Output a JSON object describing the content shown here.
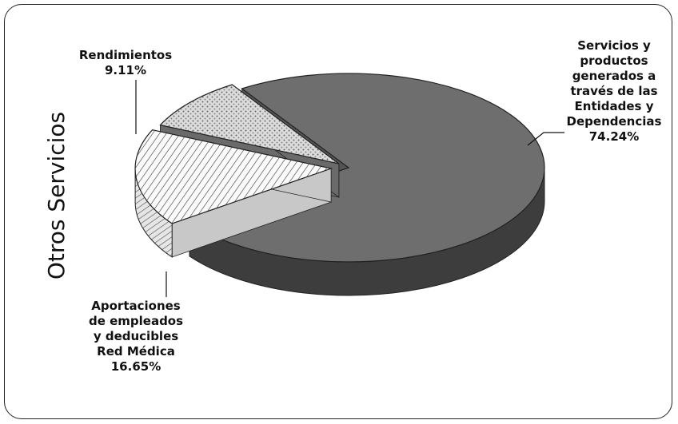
{
  "chart_data": {
    "type": "pie",
    "title": "",
    "ylabel": "Otros Servicios",
    "slices": [
      {
        "name": "Servicios y productos generados a través de las Entidades y Dependencias",
        "label_lines": [
          "Servicios y",
          "productos",
          "generados a",
          "través de las",
          "Entidades y",
          "Dependencias"
        ],
        "value": 74.24,
        "value_label": "74.24%",
        "color": "#646464"
      },
      {
        "name": "Aportaciones de empleados y deducibles Red Médica",
        "label_lines": [
          "Aportaciones",
          "de empleados",
          "y deducibles",
          "Red Médica"
        ],
        "value": 16.65,
        "value_label": "16.65%",
        "color": "#f0f0f0"
      },
      {
        "name": "Rendimientos",
        "label_lines": [
          "Rendimientos"
        ],
        "value": 9.11,
        "value_label": "9.11%",
        "color": "#d8d8d8"
      }
    ]
  }
}
